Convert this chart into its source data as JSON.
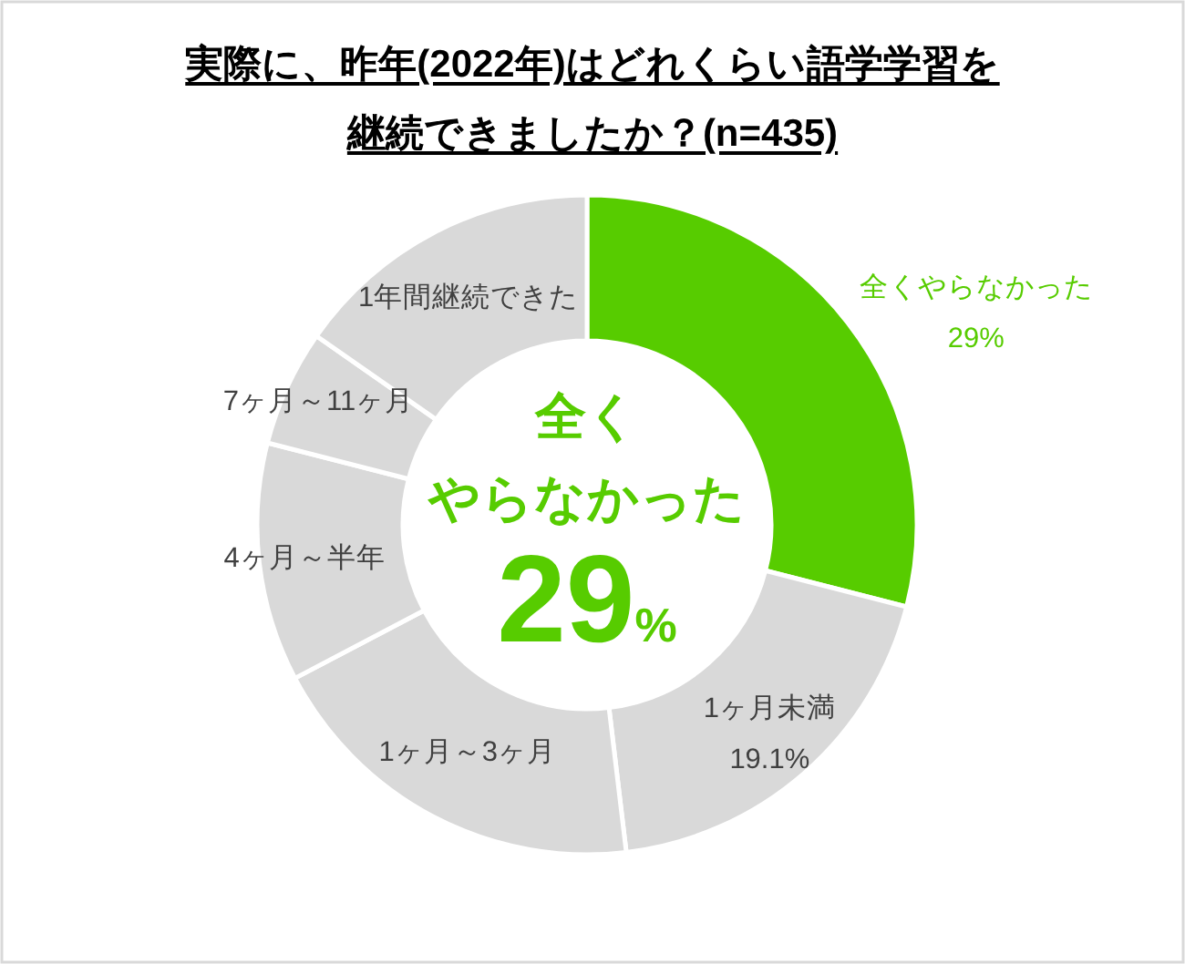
{
  "chart_data": {
    "type": "donut",
    "title": "実際に、昨年(2022年)はどれくらい語学学習を継続できましたか？(n=435)",
    "categories": [
      "全くやらなかった",
      "1ヶ月未満",
      "1ヶ月～3ヶ月",
      "4ヶ月～半年",
      "7ヶ月～11ヶ月",
      "1年間継続できた"
    ],
    "values": [
      29,
      19.1,
      19.2,
      11.7,
      5.7,
      15.3
    ],
    "colors": [
      "#57cc00",
      "#d9d9d9",
      "#d9d9d9",
      "#d9d9d9",
      "#d9d9d9",
      "#d9d9d9"
    ],
    "value_labels": [
      "29%",
      "19.1%",
      null,
      null,
      null,
      null
    ],
    "annotations": [
      "全くやらなかった",
      "29%"
    ]
  }
}
